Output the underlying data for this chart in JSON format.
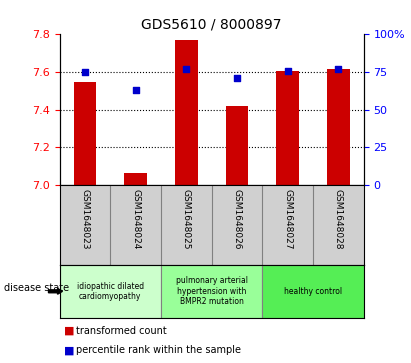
{
  "title": "GDS5610 / 8000897",
  "samples": [
    "GSM1648023",
    "GSM1648024",
    "GSM1648025",
    "GSM1648026",
    "GSM1648027",
    "GSM1648028"
  ],
  "transformed_count": [
    7.55,
    7.065,
    7.77,
    7.42,
    7.605,
    7.615
  ],
  "percentile_rank": [
    75,
    63,
    77,
    71,
    76,
    77
  ],
  "ylim_left": [
    7.0,
    7.8
  ],
  "ylim_right": [
    0,
    100
  ],
  "yticks_left": [
    7.0,
    7.2,
    7.4,
    7.6,
    7.8
  ],
  "yticks_right": [
    0,
    25,
    50,
    75,
    100
  ],
  "bar_color": "#cc0000",
  "dot_color": "#0000cc",
  "bar_width": 0.45,
  "disease_groups": [
    {
      "label": "idiopathic dilated\ncardiomyopathy",
      "indices": [
        0,
        1
      ],
      "color": "#ccffcc"
    },
    {
      "label": "pulmonary arterial\nhypertension with\nBMPR2 mutation",
      "indices": [
        2,
        3
      ],
      "color": "#99ff99"
    },
    {
      "label": "healthy control",
      "indices": [
        4,
        5
      ],
      "color": "#55ee55"
    }
  ],
  "legend_bar_label": "transformed count",
  "legend_dot_label": "percentile rank within the sample",
  "disease_state_label": "disease state",
  "sample_bg_color": "#d0d0d0",
  "plot_bg": "#ffffff",
  "grid_color": "#000000"
}
